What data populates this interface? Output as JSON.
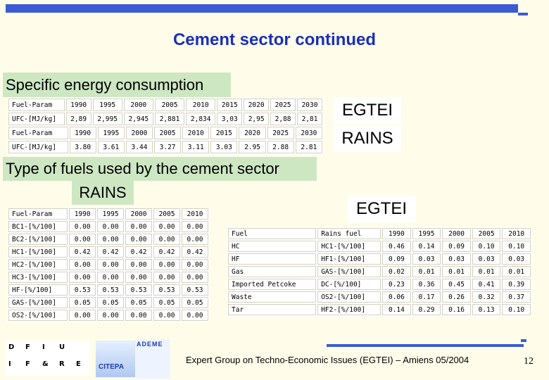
{
  "title": "Cement sector continued",
  "section1": {
    "heading": "Specific energy consumption",
    "egtei_label": "EGTEI",
    "rains_label": "RAINS",
    "table_egtei": {
      "row_years": [
        "Fuel-Param",
        "1990",
        "1995",
        "2000",
        "2005",
        "2010",
        "2015",
        "2020",
        "2025",
        "2030"
      ],
      "row_values": [
        "UFC-[MJ/kg]",
        "2,89",
        "2,995",
        "2,945",
        "2,881",
        "2,834",
        "3,03",
        "2,95",
        "2,88",
        "2,81"
      ]
    },
    "table_rains": {
      "row_years": [
        "Fuel-Param",
        "1990",
        "1995",
        "2000",
        "2005",
        "2010",
        "2015",
        "2020",
        "2025",
        "2030"
      ],
      "row_values": [
        "UFC-[MJ/kg]",
        "3.80",
        "3.61",
        "3.44",
        "3.27",
        "3.11",
        "3.03",
        "2.95",
        "2.88",
        "2.81"
      ]
    }
  },
  "section2": {
    "heading": "Type of fuels used by the cement sector",
    "rains_label": "RAINS",
    "egtei_label": "EGTEI",
    "rains_table": {
      "header": [
        "Fuel-Param",
        "1990",
        "1995",
        "2000",
        "2005",
        "2010"
      ],
      "rows": [
        [
          "BC1-[%/100]",
          "0.00",
          "0.00",
          "0.00",
          "0.00",
          "0.00"
        ],
        [
          "BC2-[%/100]",
          "0.00",
          "0.00",
          "0.00",
          "0.00",
          "0.00"
        ],
        [
          "HC1-[%/100]",
          "0.42",
          "0.42",
          "0.42",
          "0.42",
          "0.42"
        ],
        [
          "HC2-[%/100]",
          "0.00",
          "0.00",
          "0.00",
          "0.00",
          "0.00"
        ],
        [
          "HC3-[%/100]",
          "0.00",
          "0.00",
          "0.00",
          "0.00",
          "0.00"
        ],
        [
          "HF-[%/100]",
          "0.53",
          "0.53",
          "0.53",
          "0.53",
          "0.53"
        ],
        [
          "GAS-[%/100]",
          "0.05",
          "0.05",
          "0.05",
          "0.05",
          "0.05"
        ],
        [
          "OS2-[%/100]",
          "0.00",
          "0.00",
          "0.00",
          "0.00",
          "0.00"
        ]
      ]
    },
    "egtei_table": {
      "header": [
        "Fuel",
        "Rains fuel",
        "1990",
        "1995",
        "2000",
        "2005",
        "2010"
      ],
      "rows": [
        [
          "HC",
          "HC1-[%/100]",
          "0.46",
          "0.14",
          "0.09",
          "0.10",
          "0.10"
        ],
        [
          "HF",
          "HF1-[%/100]",
          "0.09",
          "0.03",
          "0.03",
          "0.03",
          "0.03"
        ],
        [
          "Gas",
          "GAS-[%/100]",
          "0.02",
          "0.01",
          "0.01",
          "0.01",
          "0.01"
        ],
        [
          "Imported Petcoke",
          "DC-[%/100]",
          "0.23",
          "0.36",
          "0.45",
          "0.41",
          "0.39"
        ],
        [
          "Waste",
          "OS2-[%/100]",
          "0.06",
          "0.17",
          "0.26",
          "0.32",
          "0.37"
        ],
        [
          "Tar",
          "HF2-[%/100]",
          "0.14",
          "0.29",
          "0.16",
          "0.13",
          "0.10"
        ]
      ]
    }
  },
  "footer": {
    "text": "Expert Group on Techno-Economic Issues (EGTEI) – Amiens 05/2004",
    "page_number": "12",
    "logo_citepa": "CITEPA",
    "logo_ademe": "ADEME",
    "logo_dfiu_letters": [
      "D",
      "F",
      "I",
      "U",
      "I",
      "F",
      "&",
      "R",
      "E"
    ]
  },
  "colors": {
    "accent_blue": "#3b5bd6",
    "title_blue": "#1a2fb8",
    "label_green": "#cde7c3",
    "background": "#fffde9"
  }
}
